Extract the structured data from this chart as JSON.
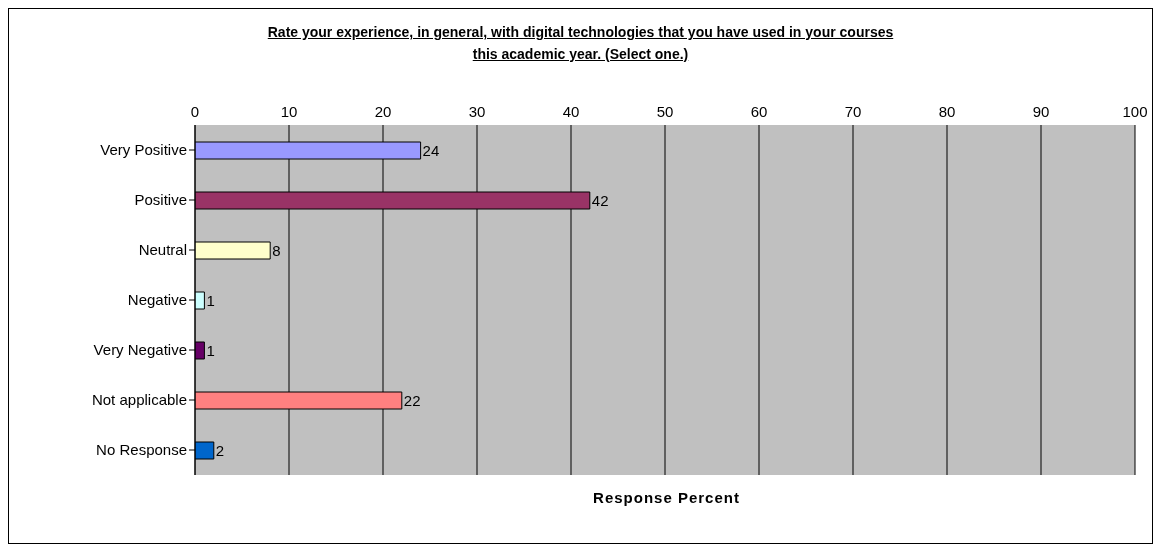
{
  "chart_data": {
    "type": "bar",
    "orientation": "horizontal",
    "title": "Rate your experience, in general, with digital technologies  that you have used in your courses this academic year. (Select one.)",
    "xlabel": "Response Percent",
    "categories": [
      "Very Positive",
      "Positive",
      "Neutral",
      "Negative",
      "Very Negative",
      "Not applicable",
      "No Response"
    ],
    "values": [
      24,
      42,
      8,
      1,
      1,
      22,
      2
    ],
    "colors": [
      "#9999ff",
      "#993366",
      "#ffffcc",
      "#ccffff",
      "#660066",
      "#ff8080",
      "#0066cc"
    ],
    "xlim": [
      0,
      100
    ],
    "xticks": [
      0,
      10,
      20,
      30,
      40,
      50,
      60,
      70,
      80,
      90,
      100
    ],
    "grid": "x",
    "data_labels": true,
    "legend": false
  }
}
